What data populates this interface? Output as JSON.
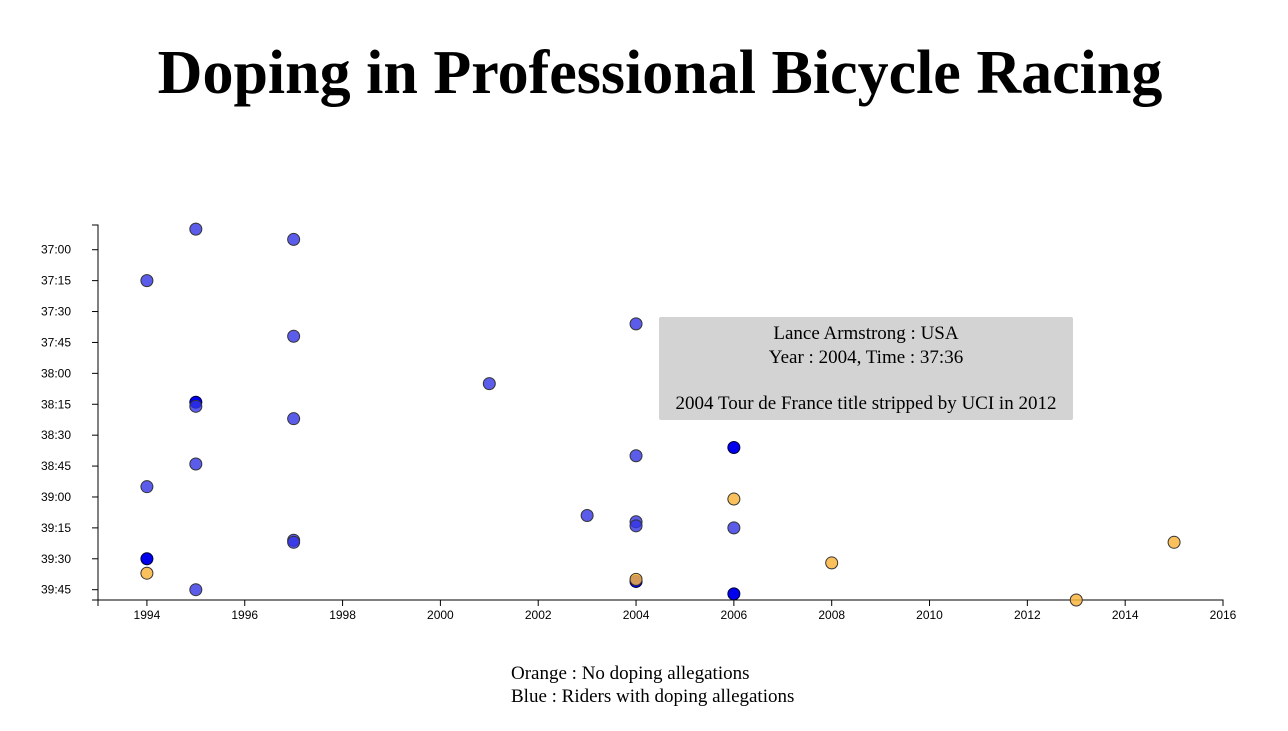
{
  "page": {
    "title": "Doping in Professional Bicycle Racing"
  },
  "tooltip": {
    "line1": "Lance Armstrong : USA",
    "line2": "Year : 2004, Time : 37:36",
    "line3": "2004 Tour de France title stripped by UCI in 2012"
  },
  "legend": {
    "orange": "Orange : No doping allegations",
    "blue": "Blue : Riders with doping allegations"
  },
  "colors": {
    "no_doping": "#f9b53f",
    "doping": "#3333e6",
    "highlight": "#0000ee"
  },
  "chart_data": {
    "type": "scatter",
    "title": "Doping in Professional Bicycle Racing",
    "xlabel": "",
    "ylabel": "",
    "x_unit": "year",
    "y_unit": "race time (mm:ss)",
    "xlim": [
      1993,
      2016
    ],
    "ylim": [
      "36:48",
      "39:50"
    ],
    "y_reversed": true,
    "x_ticks": [
      "1994",
      "1996",
      "1998",
      "2000",
      "2002",
      "2004",
      "2006",
      "2008",
      "2010",
      "2012",
      "2014",
      "2016"
    ],
    "y_ticks": [
      "37:00",
      "37:15",
      "37:30",
      "37:45",
      "38:00",
      "38:15",
      "38:30",
      "38:45",
      "39:00",
      "39:15",
      "39:30",
      "39:45"
    ],
    "series": [
      {
        "name": "Riders with doping allegations",
        "color": "#3333e6",
        "points": [
          {
            "x": 1995,
            "y": "36:50"
          },
          {
            "x": 1997,
            "y": "36:55"
          },
          {
            "x": 1994,
            "y": "37:15"
          },
          {
            "x": 2004,
            "y": "37:36"
          },
          {
            "x": 1997,
            "y": "37:42"
          },
          {
            "x": 2001,
            "y": "38:05"
          },
          {
            "x": 1995,
            "y": "38:14"
          },
          {
            "x": 1995,
            "y": "38:16"
          },
          {
            "x": 1997,
            "y": "38:22"
          },
          {
            "x": 2006,
            "y": "38:36"
          },
          {
            "x": 2004,
            "y": "38:40"
          },
          {
            "x": 1995,
            "y": "38:44"
          },
          {
            "x": 1994,
            "y": "38:55"
          },
          {
            "x": 2003,
            "y": "39:09"
          },
          {
            "x": 2004,
            "y": "39:12"
          },
          {
            "x": 2004,
            "y": "39:14"
          },
          {
            "x": 2006,
            "y": "39:15"
          },
          {
            "x": 1997,
            "y": "39:21"
          },
          {
            "x": 1997,
            "y": "39:22"
          },
          {
            "x": 1994,
            "y": "39:30"
          },
          {
            "x": 2004,
            "y": "39:41"
          },
          {
            "x": 1995,
            "y": "39:45"
          },
          {
            "x": 2006,
            "y": "39:47"
          }
        ]
      },
      {
        "name": "No doping allegations",
        "color": "#f9b53f",
        "points": [
          {
            "x": 2006,
            "y": "39:01"
          },
          {
            "x": 2015,
            "y": "39:22"
          },
          {
            "x": 2008,
            "y": "39:32"
          },
          {
            "x": 1994,
            "y": "39:37"
          },
          {
            "x": 2004,
            "y": "39:40"
          },
          {
            "x": 2013,
            "y": "39:50"
          }
        ]
      }
    ],
    "highlighted": [
      {
        "x": 1995,
        "y": "38:14"
      },
      {
        "x": 2006,
        "y": "38:36"
      },
      {
        "x": 1994,
        "y": "39:30"
      },
      {
        "x": 2004,
        "y": "39:41"
      },
      {
        "x": 2006,
        "y": "39:47"
      }
    ]
  }
}
